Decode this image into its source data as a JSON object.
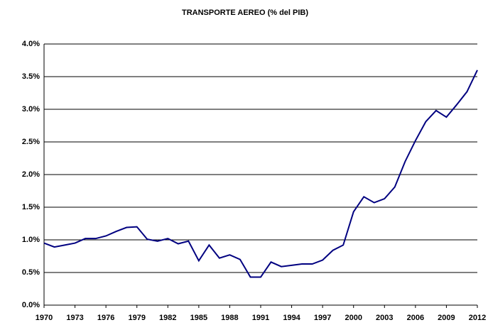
{
  "chart_data": {
    "type": "line",
    "title": "TRANSPORTE AEREO (% del PIB)",
    "x": [
      1970,
      1971,
      1972,
      1973,
      1974,
      1975,
      1976,
      1977,
      1978,
      1979,
      1980,
      1981,
      1982,
      1983,
      1984,
      1985,
      1986,
      1987,
      1988,
      1989,
      1990,
      1991,
      1992,
      1993,
      1994,
      1995,
      1996,
      1997,
      1998,
      1999,
      2000,
      2001,
      2002,
      2003,
      2004,
      2005,
      2006,
      2007,
      2008,
      2009,
      2010,
      2011,
      2012
    ],
    "series": [
      {
        "name": "Transporte aereo",
        "color": "#000080",
        "values": [
          0.95,
          0.89,
          0.92,
          0.95,
          1.02,
          1.02,
          1.06,
          1.13,
          1.19,
          1.2,
          1.01,
          0.98,
          1.02,
          0.94,
          0.98,
          0.68,
          0.92,
          0.72,
          0.77,
          0.7,
          0.43,
          0.43,
          0.66,
          0.59,
          0.61,
          0.63,
          0.63,
          0.69,
          0.84,
          0.92,
          1.43,
          1.66,
          1.57,
          1.63,
          1.81,
          2.2,
          2.52,
          2.81,
          2.98,
          2.88,
          3.07,
          3.27,
          3.6
        ]
      }
    ],
    "xlim": [
      1970,
      2012
    ],
    "xticks": [
      1970,
      1973,
      1976,
      1979,
      1982,
      1985,
      1988,
      1991,
      1994,
      1997,
      2000,
      2003,
      2006,
      2009,
      2012
    ],
    "ylim": [
      0,
      4
    ],
    "yticks": [
      {
        "value": 0,
        "label": "0.0%"
      },
      {
        "value": 0.5,
        "label": "0.5%"
      },
      {
        "value": 1,
        "label": "1.0%"
      },
      {
        "value": 1.5,
        "label": "1.5%"
      },
      {
        "value": 2,
        "label": "2.0%"
      },
      {
        "value": 2.5,
        "label": "2.5%"
      },
      {
        "value": 3,
        "label": "3.0%"
      },
      {
        "value": 3.5,
        "label": "3.5%"
      },
      {
        "value": 4,
        "label": "4.0%"
      }
    ],
    "grid": true,
    "legend": false
  }
}
